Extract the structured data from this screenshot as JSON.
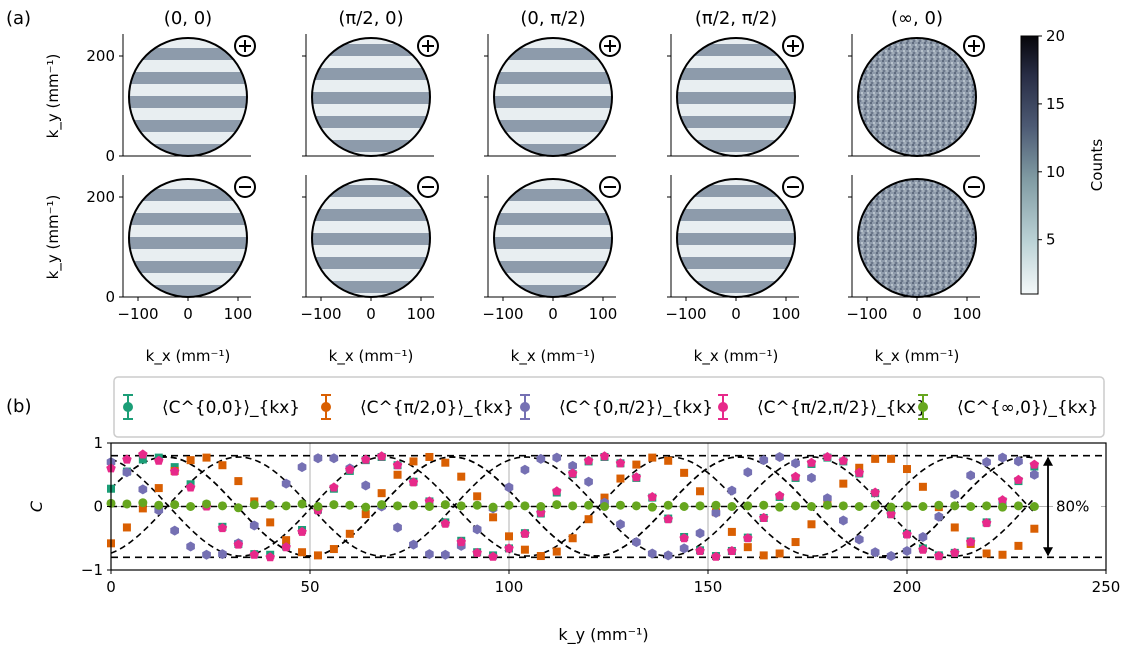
{
  "figure": {
    "panel_a_label": "(a)",
    "panel_b_label": "(b)"
  },
  "panel_a": {
    "column_titles": [
      "(0, 0)",
      "(π/2, 0)",
      "(0, π/2)",
      "(π/2, π/2)",
      "(∞, 0)"
    ],
    "row_signs": [
      "+",
      "−"
    ],
    "ylabel": "k_y (mm⁻¹)",
    "xlabel": "k_x (mm⁻¹)",
    "y_ticks": [
      "200",
      "0"
    ],
    "x_ticks": [
      "−100",
      "0",
      "100"
    ],
    "colorbar": {
      "label": "Counts",
      "ticks": [
        "20",
        "15",
        "10",
        "5"
      ],
      "colors": [
        "#f4f8f9",
        "#bcd3d6",
        "#7f9aa2",
        "#4d5a74",
        "#272c44",
        "#06060a"
      ]
    },
    "fringe_color": "#6f7f93",
    "background_color": "#ffffff"
  },
  "chart_data": {
    "type": "line",
    "xlabel": "k_y (mm⁻¹)",
    "ylabel": "C",
    "xlim": [
      0,
      250
    ],
    "ylim": [
      -1,
      1
    ],
    "x_ticks": [
      "0",
      "50",
      "100",
      "150",
      "200",
      "250"
    ],
    "y_ticks": [
      "1",
      "0",
      "−1"
    ],
    "grid": true,
    "legend_position": "top",
    "reference_lines": [
      0.8,
      -0.8
    ],
    "annotation": "80%",
    "fit_amplitude": 0.78,
    "x": [
      0,
      4,
      8,
      12,
      16,
      20,
      24,
      28,
      32,
      36,
      40,
      44,
      48,
      52,
      56,
      60,
      64,
      68,
      72,
      76,
      80,
      84,
      88,
      92,
      96,
      100,
      104,
      108,
      112,
      116,
      120,
      124,
      128,
      132,
      136,
      140,
      144,
      148,
      152,
      156,
      160,
      164,
      168,
      172,
      176,
      180,
      184,
      188,
      192,
      196,
      200,
      204,
      208,
      212,
      216,
      220,
      224,
      228,
      232
    ],
    "series": [
      {
        "name": "⟨C^{0,0}⟩_{kx}",
        "color": "#1b9e77",
        "marker": "square",
        "period": 72,
        "phase": -1.2,
        "values": [
          0.28,
          0.55,
          0.74,
          0.77,
          0.62,
          0.35,
          0.02,
          -0.32,
          -0.59,
          -0.75,
          -0.76,
          -0.63,
          -0.37,
          -0.05,
          0.28,
          0.56,
          0.73,
          0.78,
          0.65,
          0.39,
          0.08,
          -0.25,
          -0.54,
          -0.72,
          -0.77,
          -0.66,
          -0.42,
          -0.11,
          0.22,
          0.51,
          0.71,
          0.78,
          0.68,
          0.45,
          0.14,
          -0.19,
          -0.48,
          -0.69,
          -0.78,
          -0.7,
          -0.49,
          -0.18,
          0.15,
          0.45,
          0.67,
          0.77,
          0.71,
          0.52,
          0.21,
          -0.12,
          -0.43,
          -0.66,
          -0.77,
          -0.73,
          -0.55,
          -0.25,
          0.08,
          0.4,
          0.63
        ]
      },
      {
        "name": "⟨C^{π/2,0}⟩_{kx}",
        "color": "#d95f02",
        "marker": "square",
        "period": 72,
        "phase": -2.8,
        "values": [
          -0.58,
          -0.33,
          -0.03,
          0.29,
          0.56,
          0.73,
          0.77,
          0.65,
          0.4,
          0.08,
          -0.25,
          -0.53,
          -0.72,
          -0.77,
          -0.67,
          -0.43,
          -0.12,
          0.21,
          0.5,
          0.71,
          0.78,
          0.69,
          0.47,
          0.16,
          -0.17,
          -0.47,
          -0.68,
          -0.78,
          -0.71,
          -0.5,
          -0.2,
          0.14,
          0.44,
          0.66,
          0.77,
          0.72,
          0.53,
          0.24,
          -0.09,
          -0.4,
          -0.64,
          -0.77,
          -0.74,
          -0.56,
          -0.28,
          0.05,
          0.36,
          0.61,
          0.75,
          0.75,
          0.59,
          0.31,
          -0.01,
          -0.33,
          -0.59,
          -0.74,
          -0.76,
          -0.62,
          -0.35
        ]
      },
      {
        "name": "⟨C^{0,π/2}⟩_{kx}",
        "color": "#7570b3",
        "marker": "hexagon",
        "period": 72,
        "phase": 0.3,
        "values": [
          0.7,
          0.54,
          0.27,
          -0.06,
          -0.38,
          -0.63,
          -0.76,
          -0.75,
          -0.58,
          -0.3,
          0.03,
          0.36,
          0.62,
          0.76,
          0.76,
          0.6,
          0.33,
          0.0,
          -0.33,
          -0.6,
          -0.75,
          -0.76,
          -0.62,
          -0.36,
          -0.03,
          0.3,
          0.58,
          0.75,
          0.77,
          0.64,
          0.39,
          0.06,
          -0.28,
          -0.56,
          -0.74,
          -0.77,
          -0.66,
          -0.42,
          -0.1,
          0.25,
          0.54,
          0.73,
          0.78,
          0.68,
          0.45,
          0.13,
          -0.22,
          -0.52,
          -0.72,
          -0.78,
          -0.7,
          -0.48,
          -0.16,
          0.19,
          0.49,
          0.7,
          0.77,
          0.71,
          0.5
        ]
      },
      {
        "name": "⟨C^{π/2,π/2}⟩_{kx}",
        "color": "#e7298a",
        "marker": "pentagon",
        "period": 72,
        "phase": -1.2,
        "values": [
          0.6,
          0.74,
          0.82,
          0.72,
          0.55,
          0.3,
          0.0,
          -0.34,
          -0.6,
          -0.76,
          -0.8,
          -0.64,
          -0.4,
          -0.06,
          0.3,
          0.58,
          0.74,
          0.79,
          0.65,
          0.38,
          0.08,
          -0.27,
          -0.56,
          -0.73,
          -0.79,
          -0.66,
          -0.43,
          -0.1,
          0.24,
          0.52,
          0.72,
          0.79,
          0.68,
          0.46,
          0.15,
          -0.2,
          -0.5,
          -0.7,
          -0.79,
          -0.7,
          -0.5,
          -0.18,
          0.17,
          0.47,
          0.69,
          0.78,
          0.72,
          0.53,
          0.22,
          -0.12,
          -0.44,
          -0.68,
          -0.78,
          -0.73,
          -0.56,
          -0.26,
          0.1,
          0.42,
          0.66
        ]
      },
      {
        "name": "⟨C^{∞,0}⟩_{kx}",
        "color": "#66a61e",
        "marker": "circle",
        "period": 0,
        "phase": 0,
        "values": [
          0.05,
          0.04,
          0.06,
          0.02,
          0.03,
          0.0,
          0.04,
          0.01,
          -0.02,
          0.03,
          0.02,
          0.01,
          0.04,
          0.0,
          0.03,
          0.02,
          -0.01,
          0.03,
          0.01,
          0.02,
          0.0,
          0.03,
          0.01,
          0.02,
          -0.01,
          0.02,
          0.01,
          0.0,
          0.03,
          0.01,
          0.02,
          0.0,
          0.02,
          0.01,
          -0.01,
          0.02,
          0.0,
          0.01,
          0.02,
          0.0,
          0.01,
          0.02,
          -0.01,
          0.01,
          0.0,
          0.02,
          0.01,
          0.0,
          0.02,
          -0.01,
          0.01,
          0.0,
          0.02,
          0.01,
          0.0,
          0.01,
          -0.01,
          0.01,
          0.0
        ]
      }
    ]
  }
}
